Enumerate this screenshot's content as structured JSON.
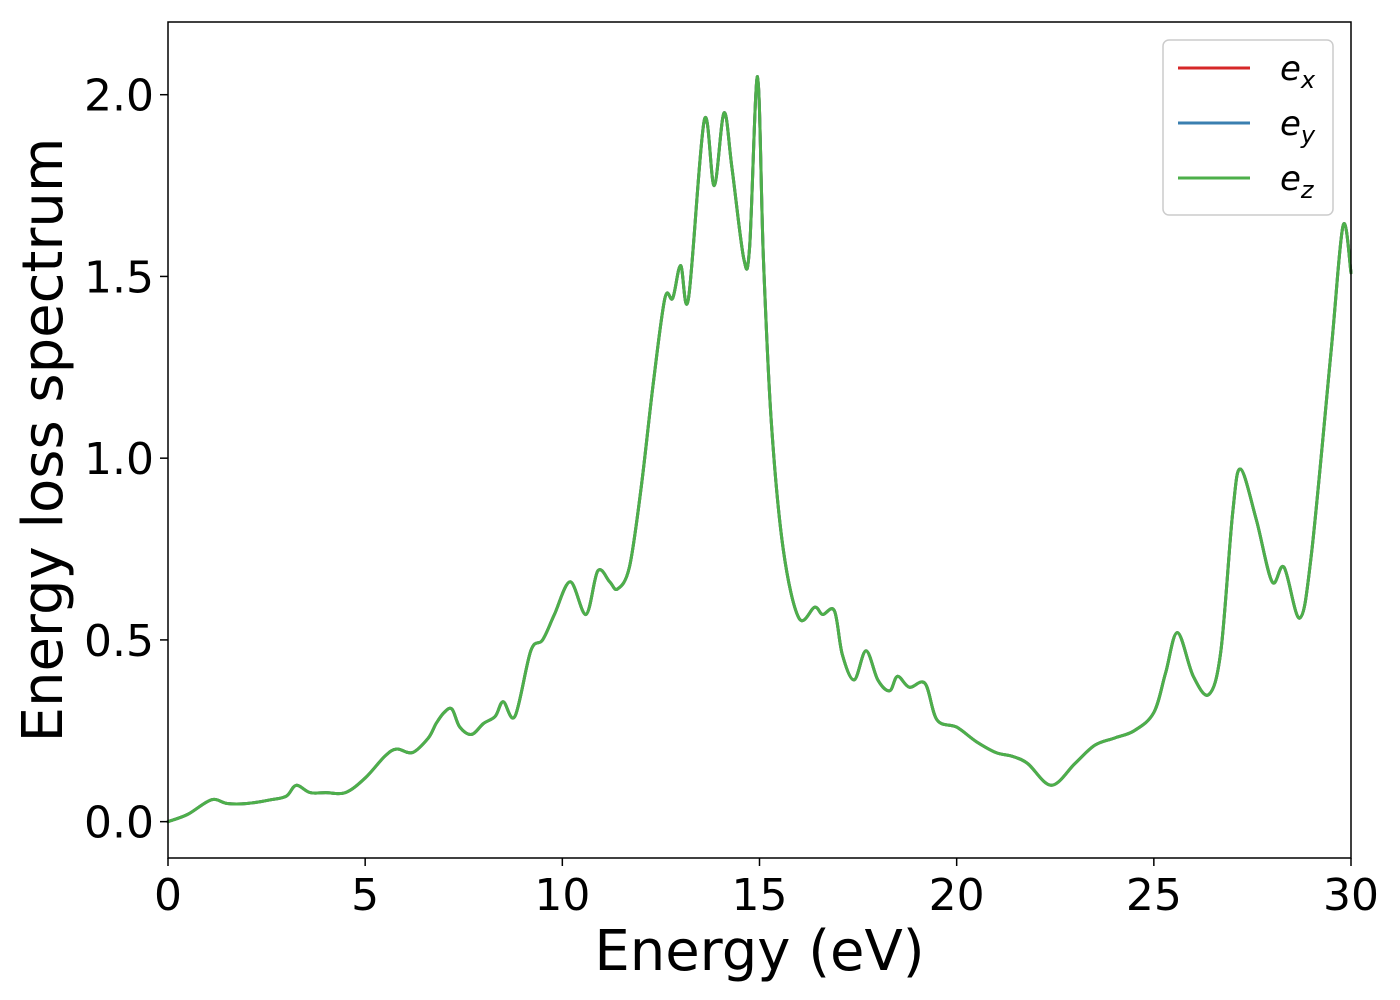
{
  "chart_data": {
    "type": "line",
    "title": "",
    "xlabel": "Energy (eV)",
    "ylabel": "Energy loss spectrum",
    "xlim": [
      0,
      30
    ],
    "ylim": [
      -0.1,
      2.2
    ],
    "xticks": [
      0,
      5,
      10,
      15,
      20,
      25,
      30
    ],
    "xtick_labels": [
      "0",
      "5",
      "10",
      "15",
      "20",
      "25",
      "30"
    ],
    "yticks": [
      0.0,
      0.5,
      1.0,
      1.5,
      2.0
    ],
    "ytick_labels": [
      "0.0",
      "0.5",
      "1.0",
      "1.5",
      "2.0"
    ],
    "grid": false,
    "legend_position": "top-right",
    "x": [
      0,
      0.5,
      1.1,
      1.5,
      2.0,
      2.6,
      3.0,
      3.25,
      3.6,
      4.0,
      4.5,
      5.0,
      5.5,
      5.8,
      6.2,
      6.6,
      6.8,
      7.0,
      7.2,
      7.4,
      7.7,
      8.0,
      8.3,
      8.5,
      8.8,
      9.2,
      9.5,
      9.8,
      10.2,
      10.6,
      10.9,
      11.2,
      11.4,
      11.7,
      12.0,
      12.3,
      12.6,
      12.8,
      13.0,
      13.2,
      13.6,
      13.85,
      14.1,
      14.3,
      14.6,
      14.75,
      14.95,
      15.1,
      15.3,
      15.6,
      16.0,
      16.4,
      16.6,
      16.9,
      17.1,
      17.4,
      17.7,
      18.0,
      18.3,
      18.5,
      18.8,
      19.2,
      19.5,
      20.0,
      20.5,
      21.0,
      21.4,
      21.8,
      22.4,
      23.0,
      23.5,
      24.0,
      24.5,
      25.0,
      25.3,
      25.6,
      26.0,
      26.4,
      26.7,
      27.0,
      27.2,
      27.6,
      28.0,
      28.3,
      28.7,
      29.0,
      29.5,
      29.8,
      30.0
    ],
    "series": [
      {
        "name": "e_x",
        "color": "#d62728",
        "values": [
          0.0,
          0.02,
          0.06,
          0.05,
          0.05,
          0.06,
          0.07,
          0.1,
          0.08,
          0.08,
          0.08,
          0.12,
          0.18,
          0.2,
          0.19,
          0.23,
          0.27,
          0.3,
          0.31,
          0.26,
          0.24,
          0.27,
          0.29,
          0.33,
          0.29,
          0.47,
          0.5,
          0.57,
          0.66,
          0.57,
          0.69,
          0.66,
          0.64,
          0.7,
          0.92,
          1.2,
          1.44,
          1.44,
          1.53,
          1.44,
          1.93,
          1.75,
          1.95,
          1.8,
          1.55,
          1.58,
          2.05,
          1.55,
          1.1,
          0.75,
          0.56,
          0.59,
          0.57,
          0.58,
          0.46,
          0.39,
          0.47,
          0.39,
          0.36,
          0.4,
          0.37,
          0.38,
          0.28,
          0.26,
          0.22,
          0.19,
          0.18,
          0.16,
          0.1,
          0.16,
          0.21,
          0.23,
          0.25,
          0.3,
          0.41,
          0.52,
          0.4,
          0.35,
          0.47,
          0.85,
          0.97,
          0.83,
          0.66,
          0.7,
          0.56,
          0.74,
          1.3,
          1.64,
          1.51
        ]
      },
      {
        "name": "e_y",
        "color": "#3a7fb0",
        "values": [
          0.0,
          0.02,
          0.06,
          0.05,
          0.05,
          0.06,
          0.07,
          0.1,
          0.08,
          0.08,
          0.08,
          0.12,
          0.18,
          0.2,
          0.19,
          0.23,
          0.27,
          0.3,
          0.31,
          0.26,
          0.24,
          0.27,
          0.29,
          0.33,
          0.29,
          0.47,
          0.5,
          0.57,
          0.66,
          0.57,
          0.69,
          0.66,
          0.64,
          0.7,
          0.92,
          1.2,
          1.44,
          1.44,
          1.53,
          1.44,
          1.93,
          1.75,
          1.95,
          1.8,
          1.55,
          1.58,
          2.05,
          1.55,
          1.1,
          0.75,
          0.56,
          0.59,
          0.57,
          0.58,
          0.46,
          0.39,
          0.47,
          0.39,
          0.36,
          0.4,
          0.37,
          0.38,
          0.28,
          0.26,
          0.22,
          0.19,
          0.18,
          0.16,
          0.1,
          0.16,
          0.21,
          0.23,
          0.25,
          0.3,
          0.41,
          0.52,
          0.4,
          0.35,
          0.47,
          0.85,
          0.97,
          0.83,
          0.66,
          0.7,
          0.56,
          0.74,
          1.3,
          1.64,
          1.51
        ]
      },
      {
        "name": "e_z",
        "color": "#4daf4a",
        "values": [
          0.0,
          0.02,
          0.06,
          0.05,
          0.05,
          0.06,
          0.07,
          0.1,
          0.08,
          0.08,
          0.08,
          0.12,
          0.18,
          0.2,
          0.19,
          0.23,
          0.27,
          0.3,
          0.31,
          0.26,
          0.24,
          0.27,
          0.29,
          0.33,
          0.29,
          0.47,
          0.5,
          0.57,
          0.66,
          0.57,
          0.69,
          0.66,
          0.64,
          0.7,
          0.92,
          1.2,
          1.44,
          1.44,
          1.53,
          1.44,
          1.93,
          1.75,
          1.95,
          1.8,
          1.55,
          1.58,
          2.05,
          1.55,
          1.1,
          0.75,
          0.56,
          0.59,
          0.57,
          0.58,
          0.46,
          0.39,
          0.47,
          0.39,
          0.36,
          0.4,
          0.37,
          0.38,
          0.28,
          0.26,
          0.22,
          0.19,
          0.18,
          0.16,
          0.1,
          0.16,
          0.21,
          0.23,
          0.25,
          0.3,
          0.41,
          0.52,
          0.4,
          0.35,
          0.47,
          0.85,
          0.97,
          0.83,
          0.66,
          0.7,
          0.56,
          0.74,
          1.3,
          1.64,
          1.51
        ]
      }
    ],
    "legend": [
      {
        "base": "e",
        "sub": "x",
        "color": "#d62728"
      },
      {
        "base": "e",
        "sub": "y",
        "color": "#3a7fb0"
      },
      {
        "base": "e",
        "sub": "z",
        "color": "#4daf4a"
      }
    ]
  }
}
